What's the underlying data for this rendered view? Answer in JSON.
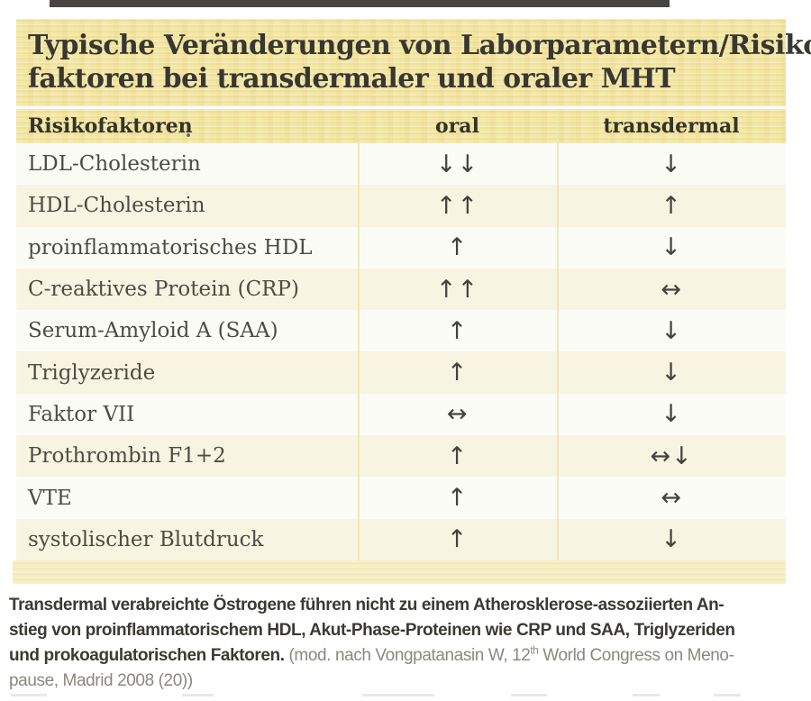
{
  "title": {
    "line1": "Typische Veränderungen von Laborparametern/Risiko-",
    "line2": "faktoren bei transdermaler und oraler MHT"
  },
  "table": {
    "columns": [
      "Risikofaktoren",
      "oral",
      "transdermal"
    ],
    "rows": [
      {
        "label": "LDL-Cholesterin",
        "oral": "↓↓",
        "transdermal": "↓"
      },
      {
        "label": "HDL-Cholesterin",
        "oral": "↑↑",
        "transdermal": "↑"
      },
      {
        "label": "proinflammatorisches HDL",
        "oral": "↑",
        "transdermal": "↓"
      },
      {
        "label": "C-reaktives Protein (CRP)",
        "oral": "↑↑",
        "transdermal": "↔"
      },
      {
        "label": "Serum-Amyloid A (SAA)",
        "oral": "↑",
        "transdermal": "↓"
      },
      {
        "label": "Triglyzeride",
        "oral": "↑",
        "transdermal": "↓"
      },
      {
        "label": "Faktor VII",
        "oral": "↔",
        "transdermal": "↓"
      },
      {
        "label": "Prothrombin F1+2",
        "oral": "↑",
        "transdermal": "↔↓"
      },
      {
        "label": "VTE",
        "oral": "↑",
        "transdermal": "↔"
      },
      {
        "label": "systolischer Blutdruck",
        "oral": "↑",
        "transdermal": "↓"
      }
    ]
  },
  "caption": {
    "lines": [
      [
        {
          "t": "Transdermal verabreichte Östrogene führen nicht zu einem Atherosklerose-assoziierten An-",
          "b": true
        }
      ],
      [
        {
          "t": "stieg von proinflammatorischem HDL, Akut-Phase-Proteinen wie CRP und SAA, Triglyzeriden",
          "b": true
        }
      ],
      [
        {
          "t": "und prokoagulatorischen Faktoren.",
          "b": true
        },
        {
          "t": " (mod. nach Vongpatanasin W, 12",
          "b": false
        },
        {
          "t": "th",
          "b": false,
          "sup": true
        },
        {
          "t": " World Congress on Meno-",
          "b": false
        }
      ],
      [
        {
          "t": "pause, Madrid 2008 (20))",
          "b": false
        }
      ]
    ]
  },
  "colors": {
    "header_yellow": "#f3e7a4",
    "row_cream": "#f8f4e2",
    "row_white": "#fcfcf7",
    "bottom_strip": "#f7efc4",
    "text_dark": "#383731",
    "row_text": "#4d4c44",
    "arrow_color": "#44433c",
    "caption_bold": "#3b3a33",
    "caption_regular": "#8a8880"
  }
}
